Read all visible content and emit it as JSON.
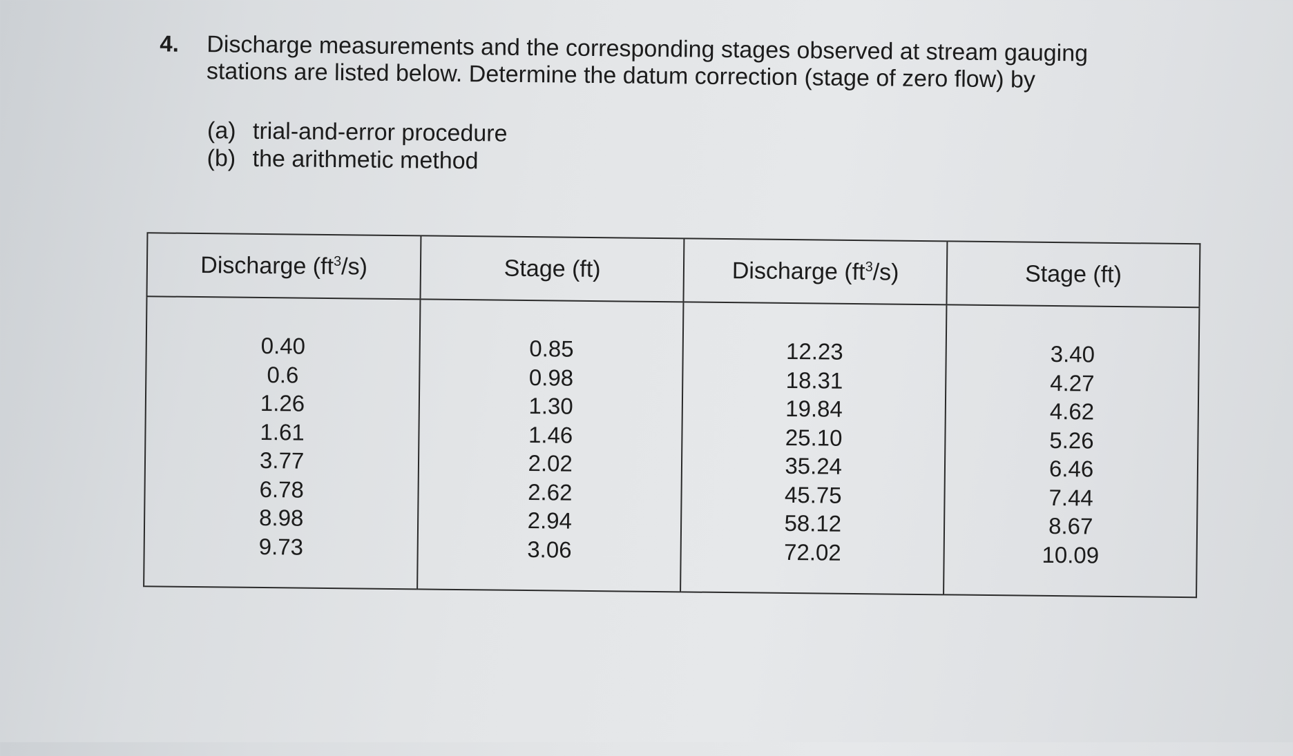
{
  "problem": {
    "number": "4.",
    "text": "Discharge measurements and the corresponding stages observed at stream gauging stations are listed below. Determine the datum correction (stage of zero flow) by",
    "parts": [
      {
        "label": "(a)",
        "text": "trial-and-error procedure"
      },
      {
        "label": "(b)",
        "text": "the arithmetic method"
      }
    ]
  },
  "table": {
    "headers": [
      {
        "base": "Discharge (ft",
        "sup": "3",
        "tail": "/s)"
      },
      {
        "base": "Stage (ft)",
        "sup": "",
        "tail": ""
      },
      {
        "base": "Discharge (ft",
        "sup": "3",
        "tail": "/s)"
      },
      {
        "base": "Stage (ft)",
        "sup": "",
        "tail": ""
      }
    ],
    "columns": [
      [
        "0.40",
        "0.6",
        "1.26",
        "1.61",
        "3.77",
        "6.78",
        "8.98",
        "9.73"
      ],
      [
        "0.85",
        "0.98",
        "1.30",
        "1.46",
        "2.02",
        "2.62",
        "2.94",
        "3.06"
      ],
      [
        "12.23",
        "18.31",
        "19.84",
        "25.10",
        "35.24",
        "45.75",
        "58.12",
        "72.02"
      ],
      [
        "3.40",
        "4.27",
        "4.62",
        "5.26",
        "6.46",
        "7.44",
        "8.67",
        "10.09"
      ]
    ]
  }
}
